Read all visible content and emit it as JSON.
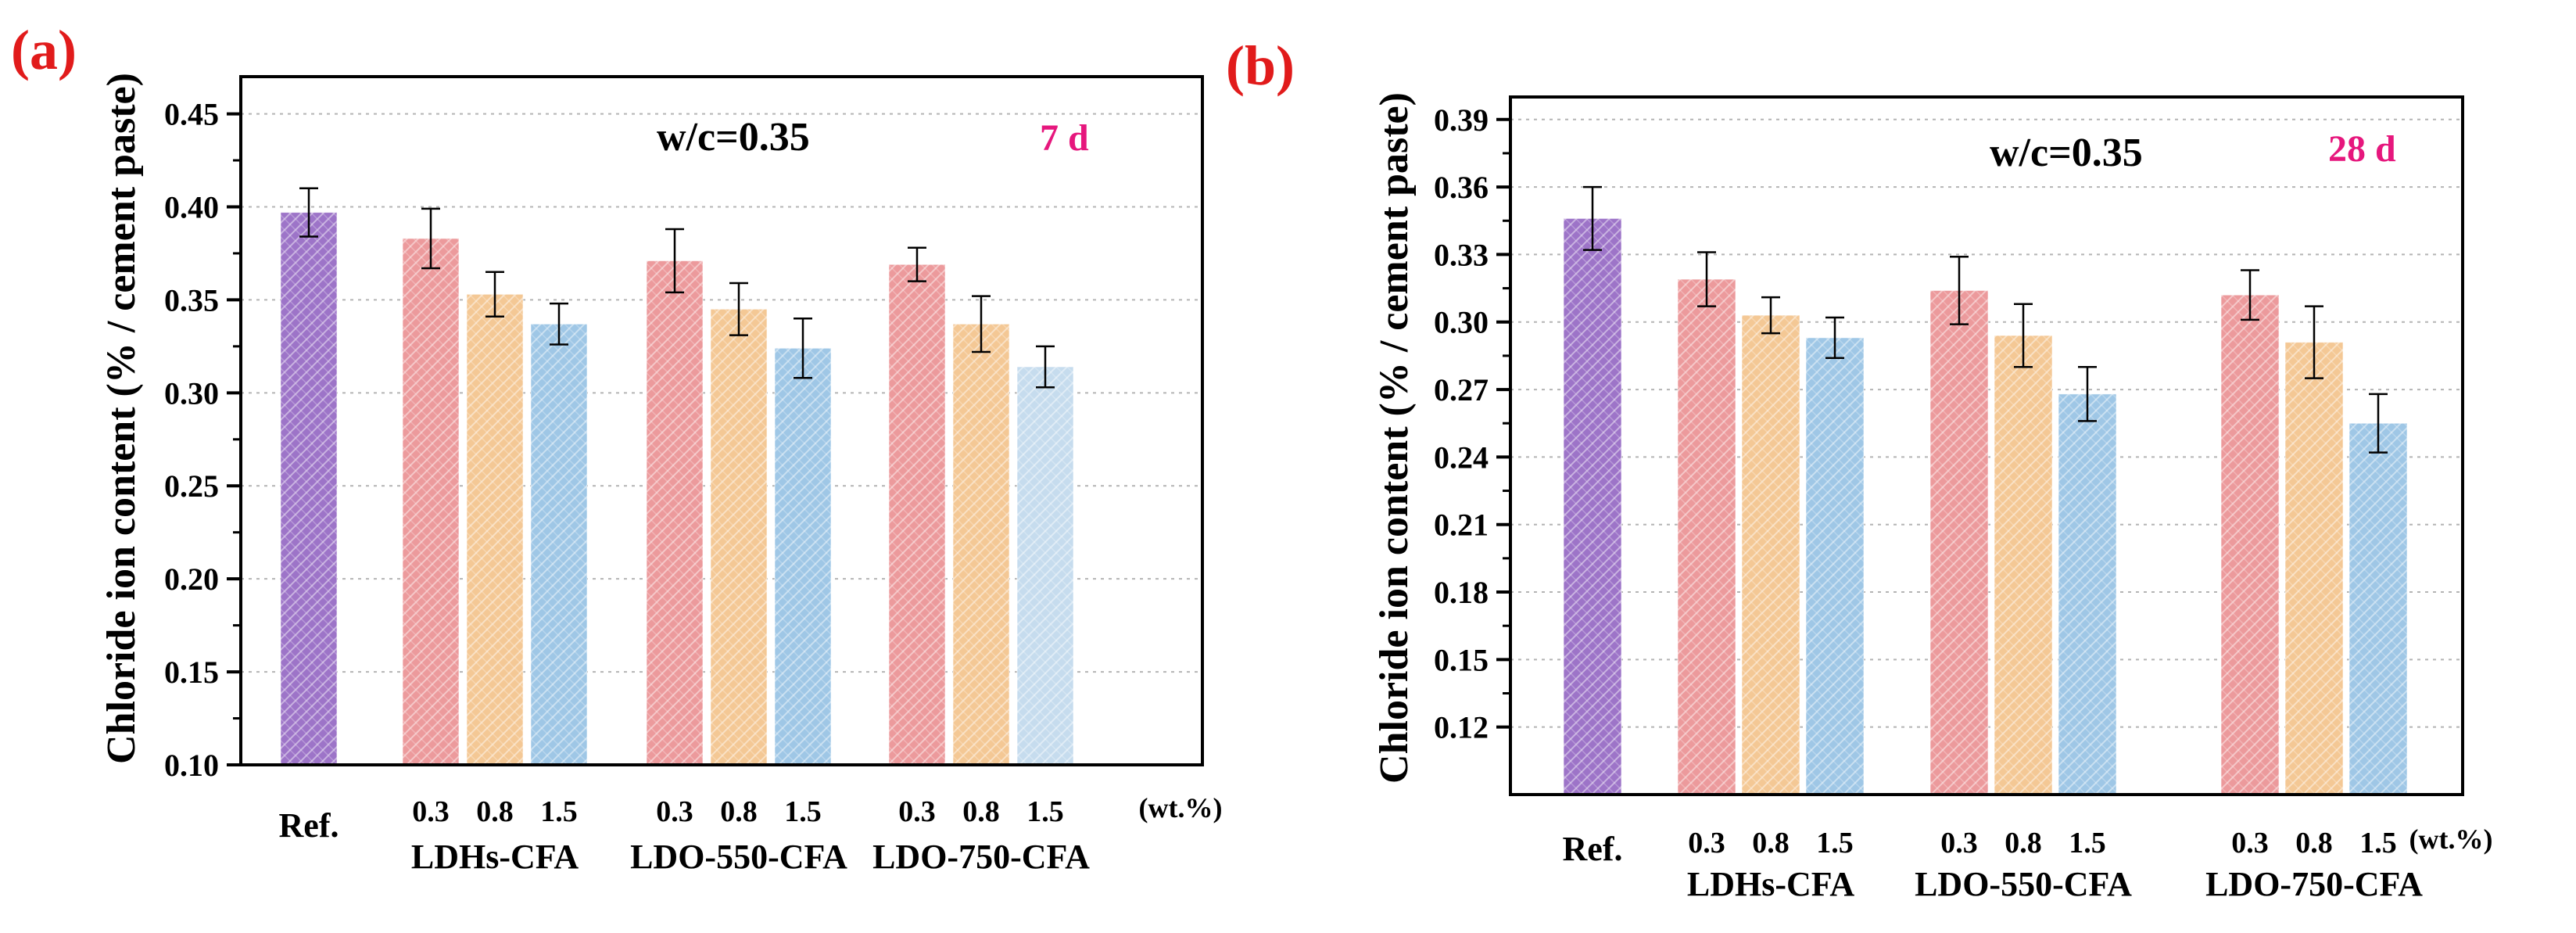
{
  "figure": {
    "colors": {
      "ref": "#9d74c8",
      "c03": "#ec9a9c",
      "c08": "#f4c895",
      "c15": "#9fc7e6",
      "c15_light": "#c6dcee",
      "annotation": "#e6177d",
      "panel_label": "#e11b1b",
      "grid": "#b4b4b4",
      "axis": "#000000",
      "error_bar": "#000000"
    }
  },
  "chart_data": [
    {
      "type": "bar",
      "panel_label": "(a)",
      "title": "",
      "xlabel": "",
      "ylabel": "Chloride ion content (% / cement paste)",
      "ylim": [
        0.1,
        0.47
      ],
      "yticks": [
        "0.10",
        "0.15",
        "0.20",
        "0.25",
        "0.30",
        "0.35",
        "0.40",
        "0.45"
      ],
      "grid": true,
      "annotations": {
        "condition": "w/c=0.35",
        "age": "7 d"
      },
      "unit_label": "(wt.%)",
      "ref_label": "Ref.",
      "groups": [
        {
          "name": "Ref.",
          "bars": [
            {
              "dosage": "",
              "value": 0.397,
              "error": 0.013,
              "color_key": "ref"
            }
          ]
        },
        {
          "name": "LDHs-CFA",
          "bars": [
            {
              "dosage": "0.3",
              "value": 0.383,
              "error": 0.016,
              "color_key": "c03"
            },
            {
              "dosage": "0.8",
              "value": 0.353,
              "error": 0.012,
              "color_key": "c08"
            },
            {
              "dosage": "1.5",
              "value": 0.337,
              "error": 0.011,
              "color_key": "c15"
            }
          ]
        },
        {
          "name": "LDO-550-CFA",
          "bars": [
            {
              "dosage": "0.3",
              "value": 0.371,
              "error": 0.017,
              "color_key": "c03"
            },
            {
              "dosage": "0.8",
              "value": 0.345,
              "error": 0.014,
              "color_key": "c08"
            },
            {
              "dosage": "1.5",
              "value": 0.324,
              "error": 0.016,
              "color_key": "c15"
            }
          ]
        },
        {
          "name": "LDO-750-CFA",
          "bars": [
            {
              "dosage": "0.3",
              "value": 0.369,
              "error": 0.009,
              "color_key": "c03"
            },
            {
              "dosage": "0.8",
              "value": 0.337,
              "error": 0.015,
              "color_key": "c08"
            },
            {
              "dosage": "1.5",
              "value": 0.314,
              "error": 0.011,
              "color_key": "c15_light"
            }
          ]
        }
      ]
    },
    {
      "type": "bar",
      "panel_label": "(b)",
      "title": "",
      "xlabel": "",
      "ylabel": "Chloride ion content (% / cement paste)",
      "ylim": [
        0.09,
        0.4
      ],
      "yticks": [
        "0.12",
        "0.15",
        "0.18",
        "0.21",
        "0.24",
        "0.27",
        "0.30",
        "0.33",
        "0.36",
        "0.39"
      ],
      "grid": true,
      "annotations": {
        "condition": "w/c=0.35",
        "age": "28 d"
      },
      "unit_label": "(wt.%)",
      "ref_label": "Ref.",
      "groups": [
        {
          "name": "Ref.",
          "bars": [
            {
              "dosage": "",
              "value": 0.346,
              "error": 0.014,
              "color_key": "ref"
            }
          ]
        },
        {
          "name": "LDHs-CFA",
          "bars": [
            {
              "dosage": "0.3",
              "value": 0.319,
              "error": 0.012,
              "color_key": "c03"
            },
            {
              "dosage": "0.8",
              "value": 0.303,
              "error": 0.008,
              "color_key": "c08"
            },
            {
              "dosage": "1.5",
              "value": 0.293,
              "error": 0.009,
              "color_key": "c15"
            }
          ]
        },
        {
          "name": "LDO-550-CFA",
          "bars": [
            {
              "dosage": "0.3",
              "value": 0.314,
              "error": 0.015,
              "color_key": "c03"
            },
            {
              "dosage": "0.8",
              "value": 0.294,
              "error": 0.014,
              "color_key": "c08"
            },
            {
              "dosage": "1.5",
              "value": 0.268,
              "error": 0.012,
              "color_key": "c15"
            }
          ]
        },
        {
          "name": "LDO-750-CFA",
          "bars": [
            {
              "dosage": "0.3",
              "value": 0.312,
              "error": 0.011,
              "color_key": "c03"
            },
            {
              "dosage": "0.8",
              "value": 0.291,
              "error": 0.016,
              "color_key": "c08"
            },
            {
              "dosage": "1.5",
              "value": 0.255,
              "error": 0.013,
              "color_key": "c15"
            }
          ]
        }
      ]
    }
  ]
}
